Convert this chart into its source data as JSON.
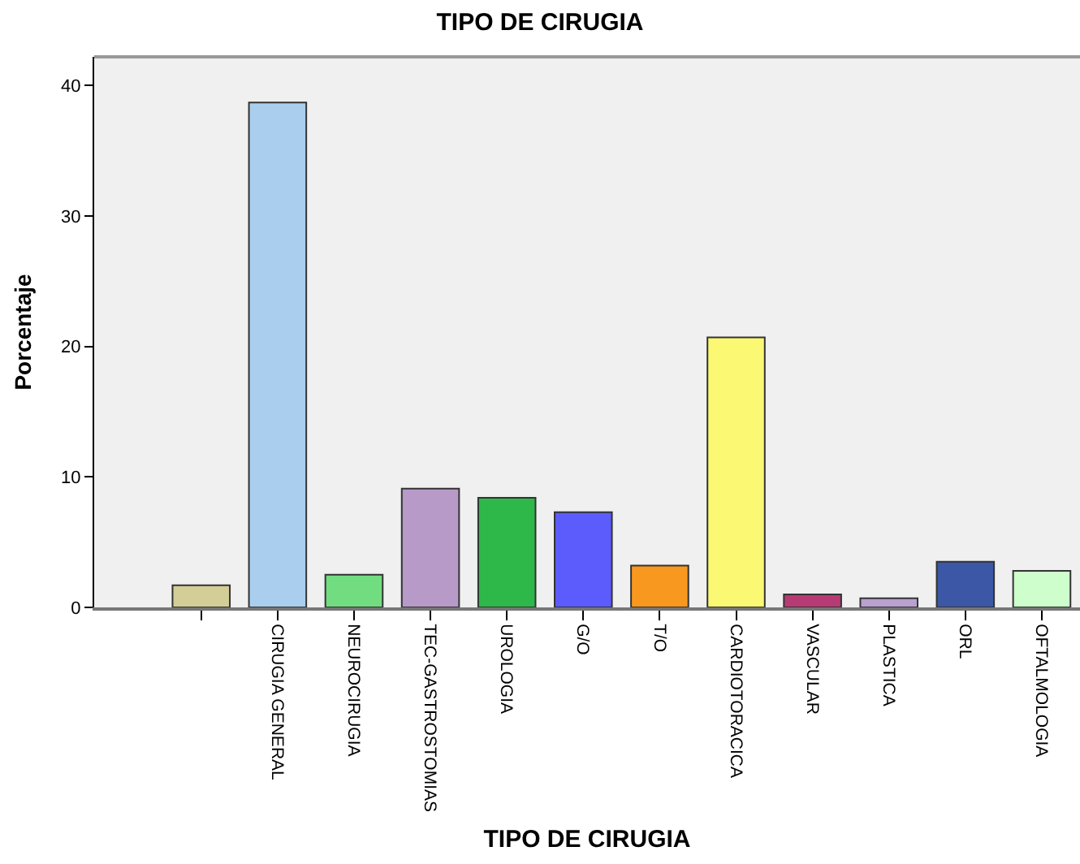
{
  "chart_data": {
    "type": "bar",
    "title": "TIPO DE CIRUGIA",
    "xlabel": "TIPO DE CIRUGIA",
    "ylabel": "Porcentaje",
    "categories": [
      null,
      "CIRUGIA GENERAL",
      "NEUROCIRUGIA",
      "TEC-GASTROSTOMIAS",
      "UROLOGIA",
      "G/O",
      "T/O",
      "CARDIOTORACICA",
      "VASCULAR",
      "PLASTICA",
      "ORL",
      "OFTALMOLOGIA"
    ],
    "values": [
      1.7,
      38.7,
      2.5,
      9.1,
      8.4,
      7.3,
      3.2,
      20.7,
      1.0,
      0.7,
      3.5,
      2.8
    ],
    "colors": [
      "#d3ce97",
      "#aacfee",
      "#72dd80",
      "#b89ac8",
      "#2eb84a",
      "#5b5cfb",
      "#f8981e",
      "#fbf873",
      "#b63b74",
      "#b8a0d0",
      "#3b57a6",
      "#cdfecb"
    ],
    "ylim": [
      0,
      42.2
    ],
    "yticks": [
      0,
      10,
      20,
      30,
      40
    ],
    "grid": false
  }
}
